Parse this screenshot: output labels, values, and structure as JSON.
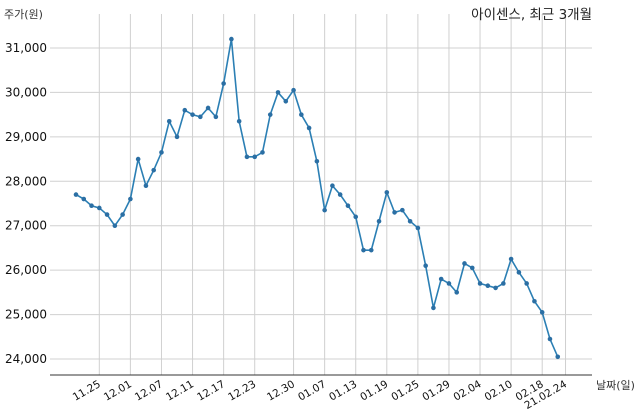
{
  "chart_data": {
    "type": "line",
    "title": "아이센스, 최근 3개월",
    "ylabel": "주가(원)",
    "xlabel": "날짜(일)",
    "ylim": [
      23800,
      31500
    ],
    "yticks": [
      24000,
      25000,
      26000,
      27000,
      28000,
      29000,
      30000,
      31000
    ],
    "ytick_labels": [
      "24,000",
      "25,000",
      "26,000",
      "27,000",
      "28,000",
      "29,000",
      "30,000",
      "31,000"
    ],
    "xtick_labels": [
      "11.25",
      "12.01",
      "12.07",
      "12.11",
      "12.17",
      "12.23",
      "12.30",
      "01.07",
      "01.13",
      "01.19",
      "01.25",
      "01.29",
      "02.04",
      "02.10",
      "02.18",
      "21.02.24"
    ],
    "xtick_index": [
      3,
      7,
      11,
      15,
      19,
      23,
      28,
      32,
      36,
      40,
      44,
      48,
      52,
      56,
      60,
      63
    ],
    "grid": true,
    "series": [
      {
        "color": "#2b7fb4",
        "values": [
          27700,
          27600,
          27450,
          27400,
          27250,
          27000,
          27250,
          27600,
          28500,
          27900,
          28250,
          28650,
          29350,
          29000,
          29600,
          29500,
          29450,
          29650,
          29450,
          30200,
          31200,
          29350,
          28550,
          28550,
          28650,
          29500,
          30000,
          29800,
          30050,
          29500,
          29200,
          28450,
          27350,
          27900,
          27700,
          27450,
          27200,
          26450,
          26450,
          27100,
          27750,
          27300,
          27350,
          27100,
          26950,
          26100,
          25150,
          25800,
          25700,
          25500,
          26150,
          26050,
          25700,
          25650,
          25600,
          25700,
          26250,
          25950,
          25700,
          25300,
          25050,
          24450,
          24050
        ]
      }
    ]
  }
}
